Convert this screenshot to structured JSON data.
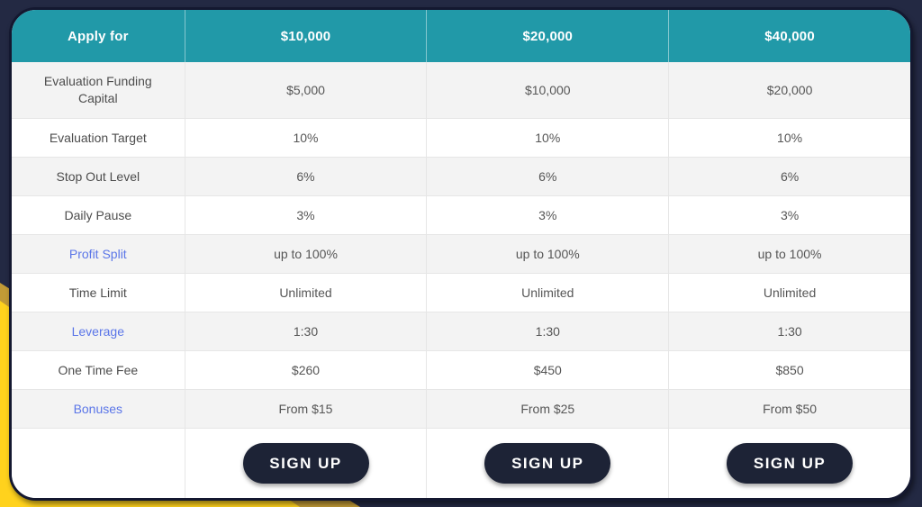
{
  "colors": {
    "page_background": "#232943",
    "header_teal": "#2199a8",
    "accent_yellow": "#ffd21d",
    "accent_gold": "#c19a36",
    "link_blue": "#5b76e8",
    "button_dark": "#1d2336",
    "row_stripe": "#f3f3f3"
  },
  "table": {
    "header": {
      "label": "Apply for",
      "plans": [
        "$10,000",
        "$20,000",
        "$40,000"
      ]
    },
    "rows": [
      {
        "label": "Evaluation Funding Capital",
        "values": [
          "$5,000",
          "$10,000",
          "$20,000"
        ]
      },
      {
        "label": "Evaluation Target",
        "values": [
          "10%",
          "10%",
          "10%"
        ]
      },
      {
        "label": "Stop Out Level",
        "values": [
          "6%",
          "6%",
          "6%"
        ]
      },
      {
        "label": "Daily Pause",
        "values": [
          "3%",
          "3%",
          "3%"
        ]
      },
      {
        "label": "Profit Split",
        "values": [
          "up to 100%",
          "up to 100%",
          "up to 100%"
        ]
      },
      {
        "label": "Time Limit",
        "values": [
          "Unlimited",
          "Unlimited",
          "Unlimited"
        ]
      },
      {
        "label": "Leverage",
        "values": [
          "1:30",
          "1:30",
          "1:30"
        ]
      },
      {
        "label": "One Time Fee",
        "values": [
          "$260",
          "$450",
          "$850"
        ]
      },
      {
        "label": "Bonuses",
        "values": [
          "From $15",
          "From $25",
          "From $50"
        ]
      }
    ],
    "signup_label": "SIGN UP"
  }
}
